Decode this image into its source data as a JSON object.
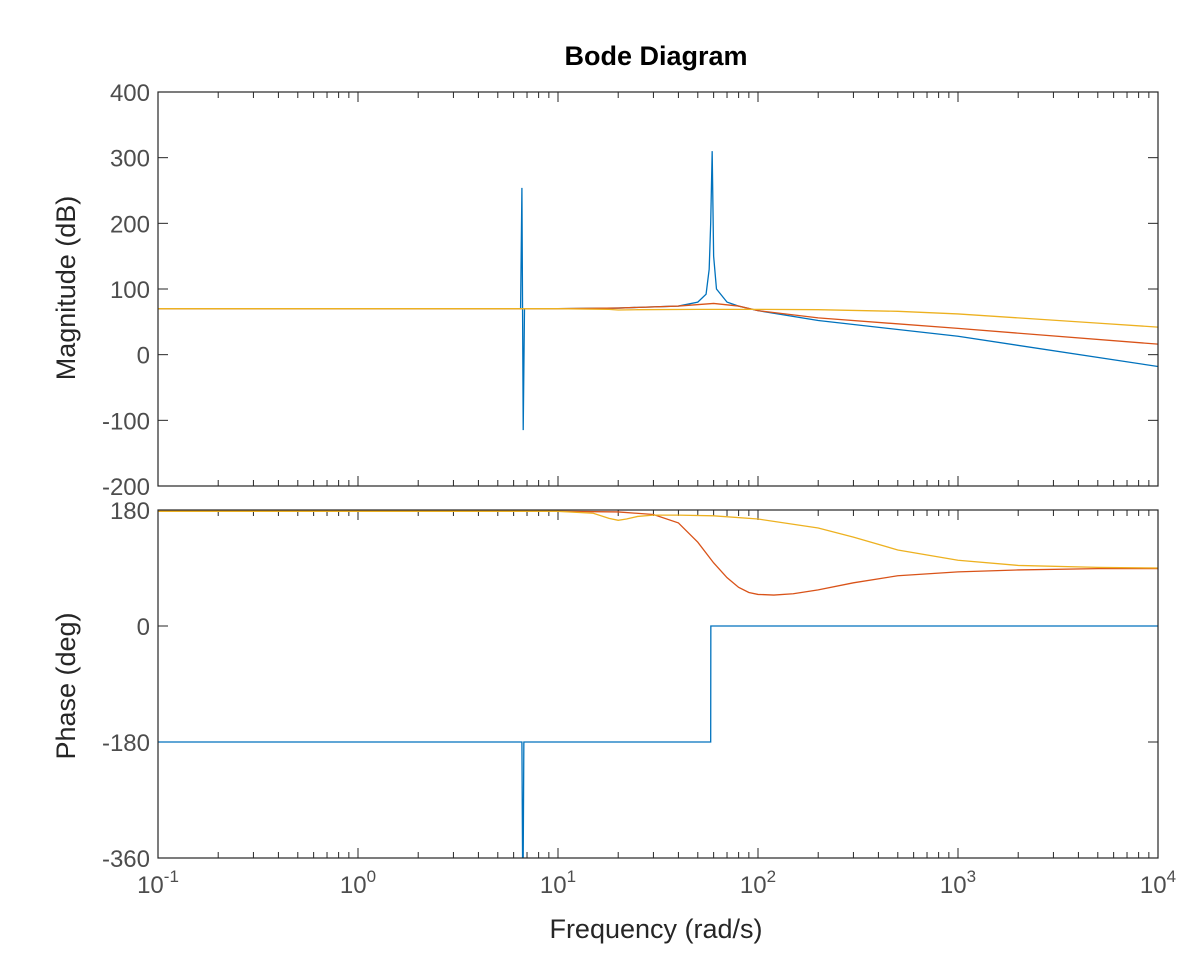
{
  "chart_data": {
    "type": "line",
    "title": "Bode Diagram",
    "xlabel": "Frequency  (rad/s)",
    "xscale": "log",
    "xlim": [
      0.1,
      10000
    ],
    "x_ticks": [
      {
        "base": "10",
        "exp": "-1"
      },
      {
        "base": "10",
        "exp": "0"
      },
      {
        "base": "10",
        "exp": "1"
      },
      {
        "base": "10",
        "exp": "2"
      },
      {
        "base": "10",
        "exp": "3"
      },
      {
        "base": "10",
        "exp": "4"
      }
    ],
    "grid": false,
    "legend": "none",
    "panels": [
      {
        "name": "magnitude",
        "ylabel": "Magnitude (dB)",
        "ylim": [
          -200,
          400
        ],
        "y_ticks": [
          "400",
          "300",
          "200",
          "100",
          "0",
          "-100",
          "-200"
        ],
        "series": [
          {
            "color": "#0072BD",
            "x": [
              0.1,
              1,
              6.5,
              6.6,
              6.65,
              6.7,
              6.8,
              10,
              20,
              40,
              50,
              55,
              57,
              58,
              59,
              60,
              62,
              70,
              80,
              100,
              200,
              1000,
              10000
            ],
            "y": [
              70,
              70,
              70,
              254,
              70,
              -115,
              70,
              70,
              71,
              74,
              80,
              92,
              130,
              200,
              310,
              150,
              100,
              80,
              74,
              67,
              52,
              28,
              -18
            ]
          },
          {
            "color": "#D95319",
            "x": [
              0.1,
              1,
              10,
              20,
              40,
              60,
              80,
              100,
              200,
              1000,
              10000
            ],
            "y": [
              70,
              70,
              70,
              71,
              74,
              78,
              74,
              67,
              56,
              40,
              16
            ]
          },
          {
            "color": "#EDB120",
            "x": [
              0.1,
              1,
              10,
              18,
              20,
              25,
              50,
              100,
              200,
              500,
              1000,
              2000,
              5000,
              10000
            ],
            "y": [
              70,
              70,
              70,
              69,
              68,
              68.5,
              69,
              69,
              68.5,
              66,
              62,
              56,
              48,
              42
            ]
          }
        ]
      },
      {
        "name": "phase",
        "ylabel": "Phase (deg)",
        "ylim": [
          -360,
          180
        ],
        "y_ticks": [
          "180",
          "0",
          "-180",
          "-360"
        ],
        "series": [
          {
            "color": "#0072BD",
            "x": [
              0.1,
              6.6,
              6.65,
              6.7,
              6.75,
              58,
              58.1,
              10000
            ],
            "y": [
              -180,
              -180,
              -360,
              -360,
              -180,
              -180,
              0,
              0
            ]
          },
          {
            "color": "#D95319",
            "x": [
              0.1,
              10,
              20,
              30,
              40,
              50,
              60,
              70,
              80,
              90,
              100,
              120,
              150,
              200,
              300,
              500,
              1000,
              2000,
              5000,
              10000
            ],
            "y": [
              178,
              178,
              177,
              173,
              160,
              130,
              98,
              75,
              60,
              52,
              49,
              48,
              50,
              56,
              67,
              78,
              84,
              87,
              89,
              89
            ]
          },
          {
            "color": "#EDB120",
            "x": [
              0.1,
              10,
              15,
              18,
              20,
              22,
              25,
              30,
              40,
              60,
              100,
              200,
              300,
              500,
              1000,
              2000,
              5000,
              10000
            ],
            "y": [
              178,
              178,
              175,
              167,
              164,
              166,
              170,
              172,
              172,
              171,
              166,
              152,
              138,
              118,
              102,
              94,
              91,
              90
            ]
          }
        ]
      }
    ]
  }
}
